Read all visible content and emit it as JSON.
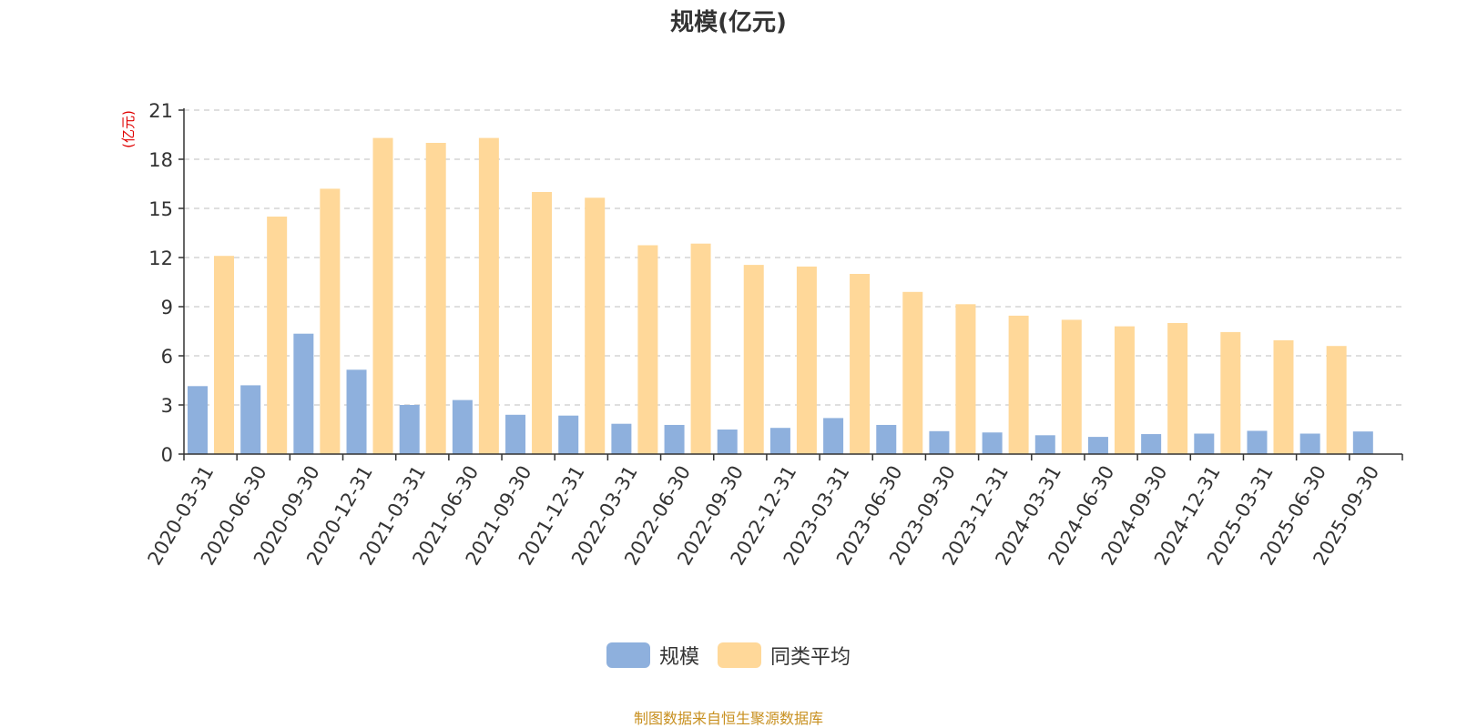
{
  "colors": {
    "scale": "#8EB0DD",
    "avg": "#FFD899",
    "unit_label": "#e00000",
    "source": "#c89020"
  },
  "source_note": "制图数据来自恒生聚源数据库",
  "chart_data": {
    "type": "bar",
    "title": "规模(亿元)",
    "ylabel": "(亿元)",
    "xlabel": "",
    "ylim": [
      0,
      21
    ],
    "yticks": [
      0,
      3,
      6,
      9,
      12,
      15,
      18,
      21
    ],
    "grid": true,
    "legend_position": "bottom",
    "categories": [
      "2020-03-31",
      "2020-06-30",
      "2020-09-30",
      "2020-12-31",
      "2021-03-31",
      "2021-06-30",
      "2021-09-30",
      "2021-12-31",
      "2022-03-31",
      "2022-06-30",
      "2022-09-30",
      "2022-12-31",
      "2023-03-31",
      "2023-06-30",
      "2023-09-30",
      "2023-12-31",
      "2024-03-31",
      "2024-06-30",
      "2024-09-30",
      "2024-12-31",
      "2025-03-31",
      "2025-06-30",
      "2025-09-30"
    ],
    "series": [
      {
        "name": "规模",
        "values": [
          4.15,
          4.2,
          7.35,
          5.15,
          3.0,
          3.3,
          2.4,
          2.35,
          1.85,
          1.78,
          1.5,
          1.6,
          2.2,
          1.78,
          1.4,
          1.32,
          1.15,
          1.05,
          1.22,
          1.25,
          1.42,
          1.25,
          1.38
        ]
      },
      {
        "name": "同类平均",
        "values": [
          12.1,
          14.5,
          16.2,
          19.3,
          19.0,
          19.3,
          16.0,
          15.65,
          12.75,
          12.85,
          11.55,
          11.45,
          11.0,
          9.9,
          9.15,
          8.45,
          8.2,
          7.8,
          8.0,
          7.45,
          6.95,
          6.6,
          null
        ]
      }
    ]
  }
}
